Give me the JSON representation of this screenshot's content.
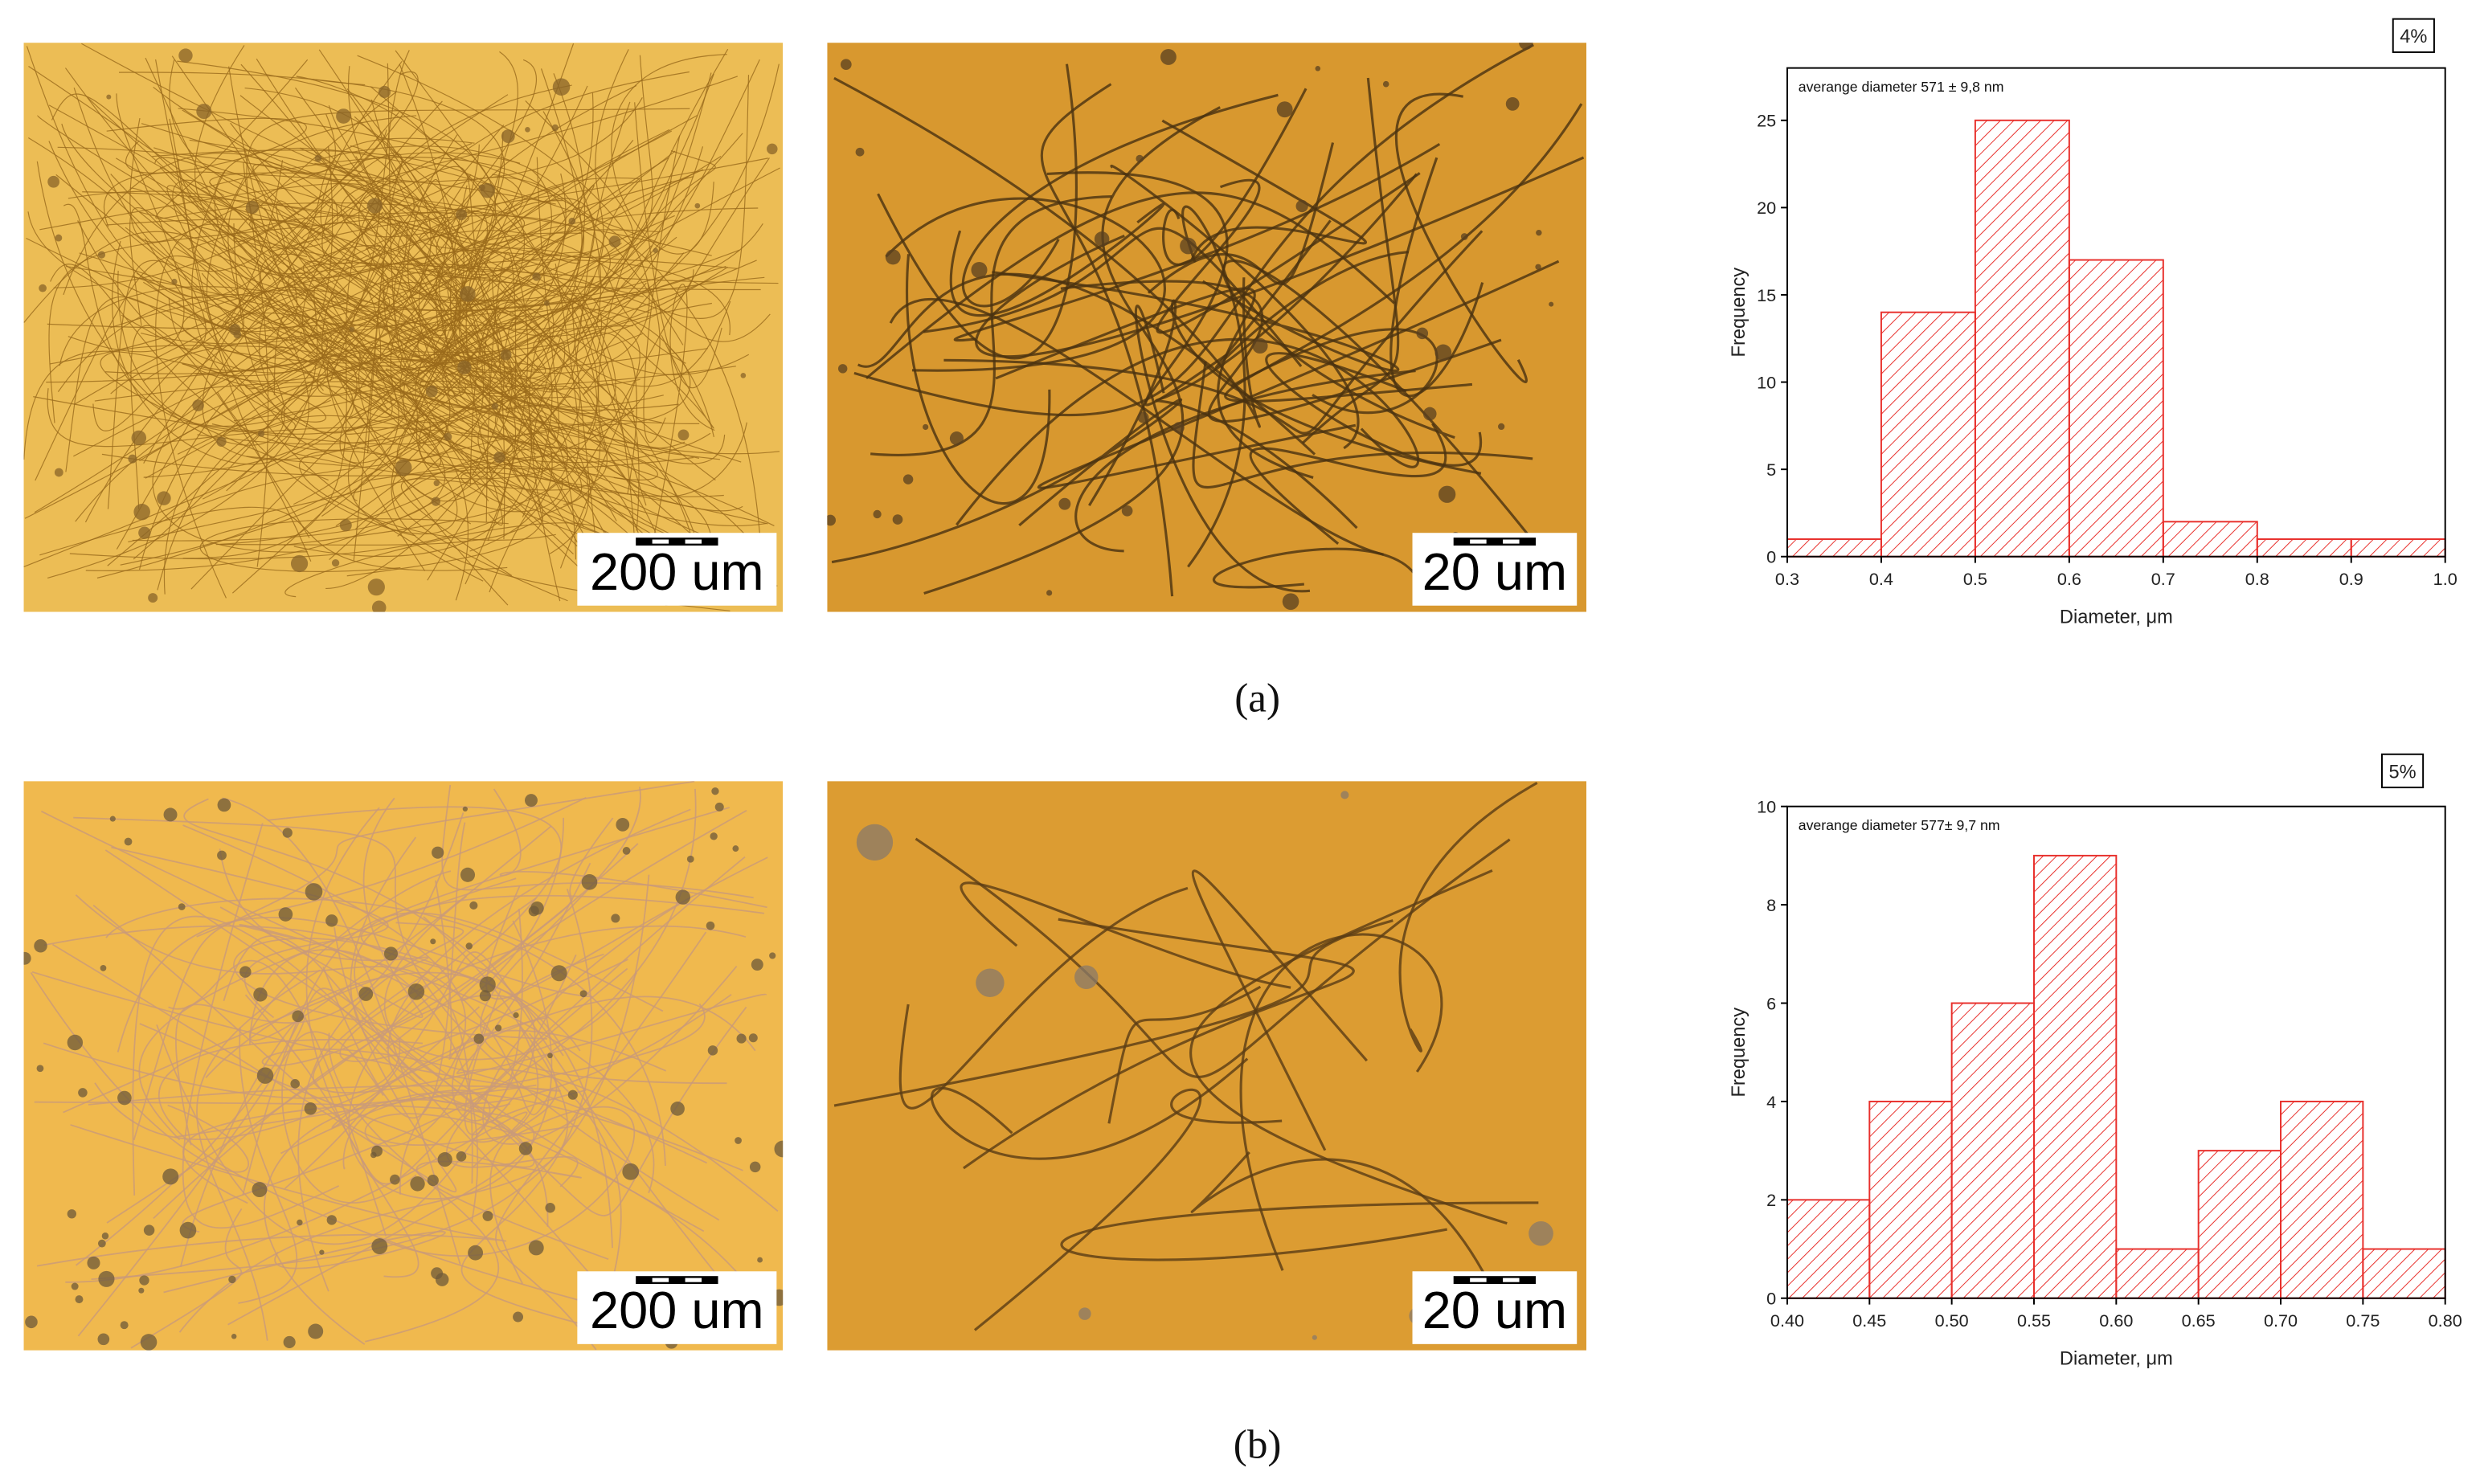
{
  "chart_data": [
    {
      "type": "histogram",
      "tag": "4%",
      "annotation": "averange diameter 571 ± 9,8 nm",
      "xlabel": "Diameter, μm",
      "ylabel": "Frequency",
      "color": "#e8302c",
      "bins": [
        0.3,
        0.4,
        0.5,
        0.6,
        0.7,
        0.8,
        0.9,
        1.0
      ],
      "values": [
        1,
        14,
        25,
        17,
        2,
        1,
        1
      ],
      "xlim": [
        0.3,
        1.0
      ],
      "ylim": [
        0,
        28
      ],
      "xticks": [
        0.3,
        0.4,
        0.5,
        0.6,
        0.7,
        0.8,
        0.9,
        {
          "value": 1.0,
          "label": "1.0"
        }
      ],
      "yticks": [
        0,
        5,
        10,
        15,
        20,
        25
      ]
    },
    {
      "type": "histogram",
      "tag": "5%",
      "annotation": "averange diameter 577± 9,7 nm",
      "xlabel": "Diameter, μm",
      "ylabel": "Frequency",
      "color": "#e8302c",
      "bins": [
        0.4,
        0.45,
        0.5,
        0.55,
        0.6,
        0.65,
        0.7,
        0.75,
        0.8
      ],
      "values": [
        2,
        4,
        6,
        9,
        1,
        3,
        4,
        1
      ],
      "xlim": [
        0.4,
        0.8
      ],
      "ylim": [
        0,
        10
      ],
      "xticks": [
        {
          "value": 0.4,
          "label": "0.40"
        },
        0.45,
        {
          "value": 0.5,
          "label": "0.50"
        },
        0.55,
        {
          "value": 0.6,
          "label": "0.60"
        },
        0.65,
        {
          "value": 0.7,
          "label": "0.70"
        },
        0.75,
        {
          "value": 0.8,
          "label": "0.80"
        }
      ],
      "yticks": [
        0,
        2,
        4,
        6,
        8,
        10
      ]
    }
  ],
  "figure": {
    "labels": [
      "(a)",
      "(b)"
    ],
    "scale_bars": [
      [
        "200 um",
        "20 um"
      ],
      [
        "200 um",
        "20 um"
      ]
    ]
  }
}
